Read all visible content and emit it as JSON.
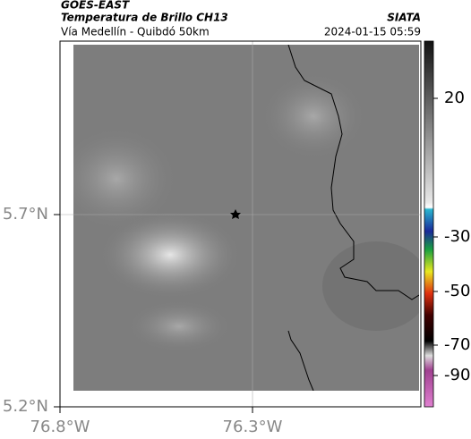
{
  "header": {
    "title": "GOES-EAST",
    "subtitle": "Temperatura de Brillo CH13",
    "source": "SIATA",
    "region": "Vía Medellín - Quibdó 50km",
    "timestamp": "2024-01-15 05:59"
  },
  "map": {
    "lat_ticks": [
      "5.7°N",
      "5.2°N"
    ],
    "lon_ticks": [
      "76.8°W",
      "76.3°W"
    ]
  },
  "colorbar": {
    "ticks": [
      20,
      -30,
      -50,
      -70,
      -90
    ]
  }
}
